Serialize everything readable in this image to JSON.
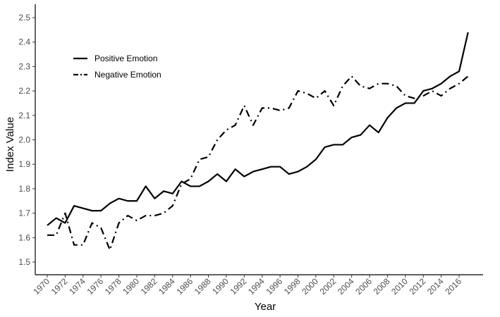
{
  "chart_data": {
    "type": "line",
    "title": "",
    "xlabel": "Year",
    "ylabel": "Index Value",
    "xlim": [
      1970,
      2017
    ],
    "ylim": [
      1.47,
      2.55
    ],
    "x_ticks": [
      1970,
      1972,
      1974,
      1976,
      1978,
      1980,
      1982,
      1984,
      1986,
      1988,
      1990,
      1992,
      1994,
      1996,
      1998,
      2000,
      2002,
      2004,
      2006,
      2008,
      2010,
      2012,
      2014,
      2016
    ],
    "y_ticks": [
      1.5,
      1.6,
      1.7,
      1.8,
      1.9,
      2.0,
      2.1,
      2.2,
      2.3,
      2.4,
      2.5
    ],
    "grid": false,
    "legend_position": "top-left",
    "x": [
      1970,
      1971,
      1972,
      1973,
      1974,
      1975,
      1976,
      1977,
      1978,
      1979,
      1980,
      1981,
      1982,
      1983,
      1984,
      1985,
      1986,
      1987,
      1988,
      1989,
      1990,
      1991,
      1992,
      1993,
      1994,
      1995,
      1996,
      1997,
      1998,
      1999,
      2000,
      2001,
      2002,
      2003,
      2004,
      2005,
      2006,
      2007,
      2008,
      2009,
      2010,
      2011,
      2012,
      2013,
      2014,
      2015,
      2016,
      2017
    ],
    "series": [
      {
        "name": "Positive Emotion",
        "style": "solid",
        "color": "#000000",
        "values": [
          1.65,
          1.68,
          1.66,
          1.73,
          1.72,
          1.71,
          1.71,
          1.74,
          1.76,
          1.75,
          1.75,
          1.81,
          1.76,
          1.79,
          1.78,
          1.83,
          1.81,
          1.81,
          1.83,
          1.86,
          1.83,
          1.88,
          1.85,
          1.87,
          1.88,
          1.89,
          1.89,
          1.86,
          1.87,
          1.89,
          1.92,
          1.97,
          1.98,
          1.98,
          2.01,
          2.02,
          2.06,
          2.03,
          2.09,
          2.13,
          2.15,
          2.15,
          2.2,
          2.21,
          2.23,
          2.26,
          2.28,
          2.44
        ]
      },
      {
        "name": "Negative Emotion",
        "style": "dashdot",
        "color": "#000000",
        "values": [
          1.61,
          1.61,
          1.7,
          1.57,
          1.57,
          1.66,
          1.64,
          1.55,
          1.66,
          1.69,
          1.67,
          1.69,
          1.69,
          1.7,
          1.73,
          1.82,
          1.84,
          1.92,
          1.93,
          2.0,
          2.04,
          2.06,
          2.14,
          2.06,
          2.13,
          2.13,
          2.12,
          2.13,
          2.2,
          2.19,
          2.17,
          2.2,
          2.14,
          2.22,
          2.26,
          2.22,
          2.21,
          2.23,
          2.23,
          2.22,
          2.18,
          2.17,
          2.18,
          2.2,
          2.18,
          2.21,
          2.23,
          2.26
        ]
      }
    ]
  }
}
